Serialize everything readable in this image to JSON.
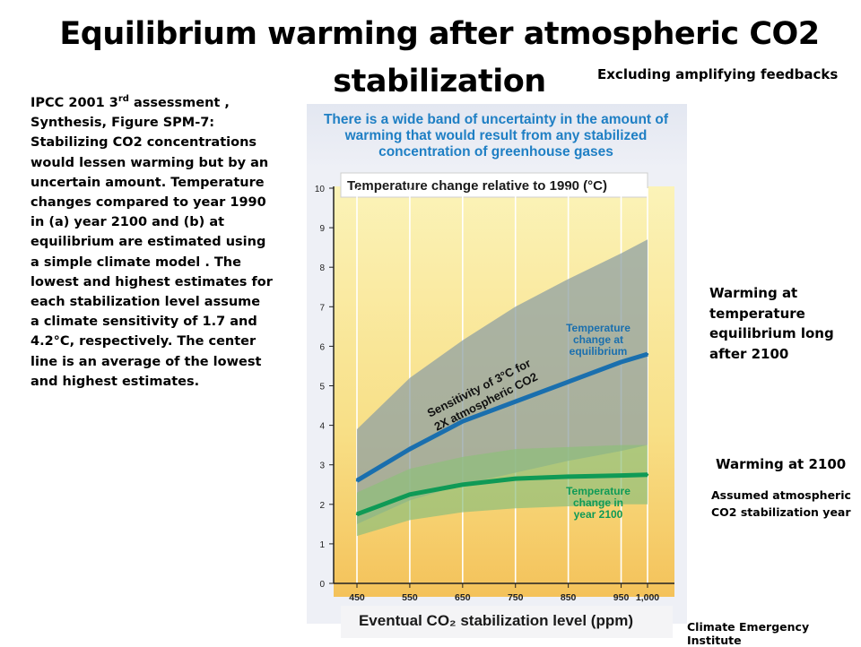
{
  "slide": {
    "title_line1": "Equilibrium warming after atmospheric CO2",
    "title_line2": "stabilization",
    "subnote": "Excluding amplifying feedbacks",
    "description_lead": "IPCC 2001 3",
    "description_sup": "rd",
    "description_rest": " assessment , Synthesis, Figure SPM-7: Stabilizing CO2 concentrations would lessen warming but by an uncertain amount. Temperature changes compared to year 1990 in (a) year 2100 and (b) at equilibrium are estimated using a simple climate model . The lowest and highest estimates for each stabilization level assume a climate sensitivity of 1.7 and 4.2°C, respectively. The center line is an average of the lowest and highest estimates.",
    "note_equilibrium": "Warming at temperature equilibrium long after 2100",
    "note_2100": "Warming at 2100",
    "note_year": "Assumed atmospheric CO2 stabilization year",
    "credit": "Climate Emergency Institute"
  },
  "colors": {
    "header_text": "#1f7fc4",
    "equilibrium_line": "#1a6fae",
    "year2100_line": "#0f9a56",
    "equilibrium_band": "#8fa0a3",
    "year2100_band": "#8fbf7a",
    "background_top": "#fbf3b8",
    "background_bottom": "#f4c25a"
  },
  "chart_data": {
    "type": "area",
    "header": "There is a wide band of uncertainty in the amount of warming that would result from any stabilized concentration of greenhouse gases",
    "title": "Temperature change relative to 1990 (°C)",
    "xlabel": "Eventual CO₂ stabilization level (ppm)",
    "ylabel": "",
    "x": [
      450,
      550,
      650,
      750,
      850,
      950,
      1000
    ],
    "x_tick_labels": [
      "450",
      "550",
      "650",
      "750",
      "850",
      "950",
      "1,000"
    ],
    "ylim": [
      0,
      10
    ],
    "y_ticks": [
      0,
      1,
      2,
      3,
      4,
      5,
      6,
      7,
      8,
      9,
      10
    ],
    "grid": "vertical",
    "series": [
      {
        "name": "Temperature change at equilibrium",
        "center": [
          2.6,
          3.4,
          4.1,
          4.6,
          5.1,
          5.6,
          5.8
        ],
        "low": [
          1.5,
          2.1,
          2.5,
          2.8,
          3.1,
          3.35,
          3.5
        ],
        "high": [
          3.9,
          5.2,
          6.15,
          7.0,
          7.7,
          8.35,
          8.7
        ]
      },
      {
        "name": "Temperature change in year 2100",
        "center": [
          1.75,
          2.25,
          2.5,
          2.65,
          2.7,
          2.73,
          2.75
        ],
        "low": [
          1.2,
          1.6,
          1.8,
          1.9,
          1.95,
          2.0,
          2.0
        ],
        "high": [
          2.3,
          2.9,
          3.2,
          3.4,
          3.45,
          3.5,
          3.5
        ]
      }
    ],
    "annotation": "Sensitivity of 3°C for 2X atmospheric CO2"
  }
}
